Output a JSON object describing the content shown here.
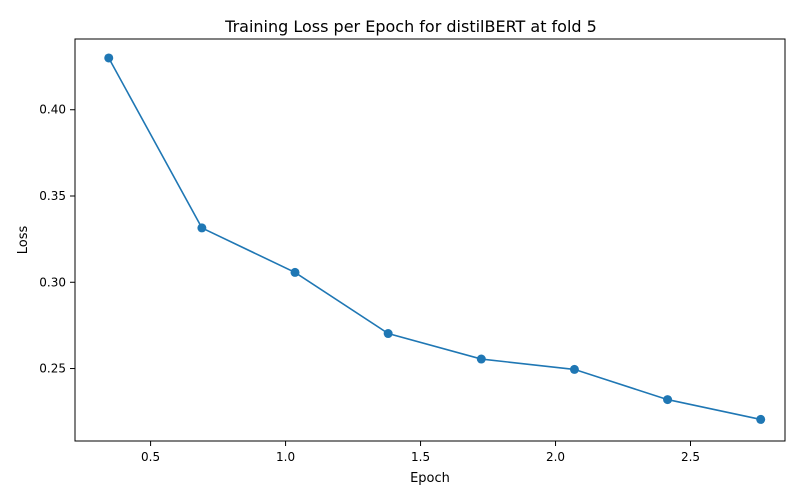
{
  "chart_data": {
    "type": "line",
    "title": "Training Loss per Epoch for distilBERT at fold 5",
    "xlabel": "Epoch",
    "ylabel": "Loss",
    "xlim": [
      0.22,
      2.85
    ],
    "ylim": [
      0.208,
      0.441
    ],
    "xticks": [
      0.5,
      1.0,
      1.5,
      2.0,
      2.5
    ],
    "xtick_labels": [
      "0.5",
      "1.0",
      "1.5",
      "2.0",
      "2.5"
    ],
    "yticks": [
      0.25,
      0.3,
      0.35,
      0.4
    ],
    "ytick_labels": [
      "0.25",
      "0.30",
      "0.35",
      "0.40"
    ],
    "grid": false,
    "series": [
      {
        "color": "#1f77b4",
        "marker": "circle",
        "x": [
          0.345,
          0.69,
          1.035,
          1.38,
          1.725,
          2.07,
          2.415,
          2.76
        ],
        "y": [
          0.43,
          0.3315,
          0.3057,
          0.2703,
          0.2555,
          0.2495,
          0.232,
          0.2205
        ]
      }
    ]
  }
}
